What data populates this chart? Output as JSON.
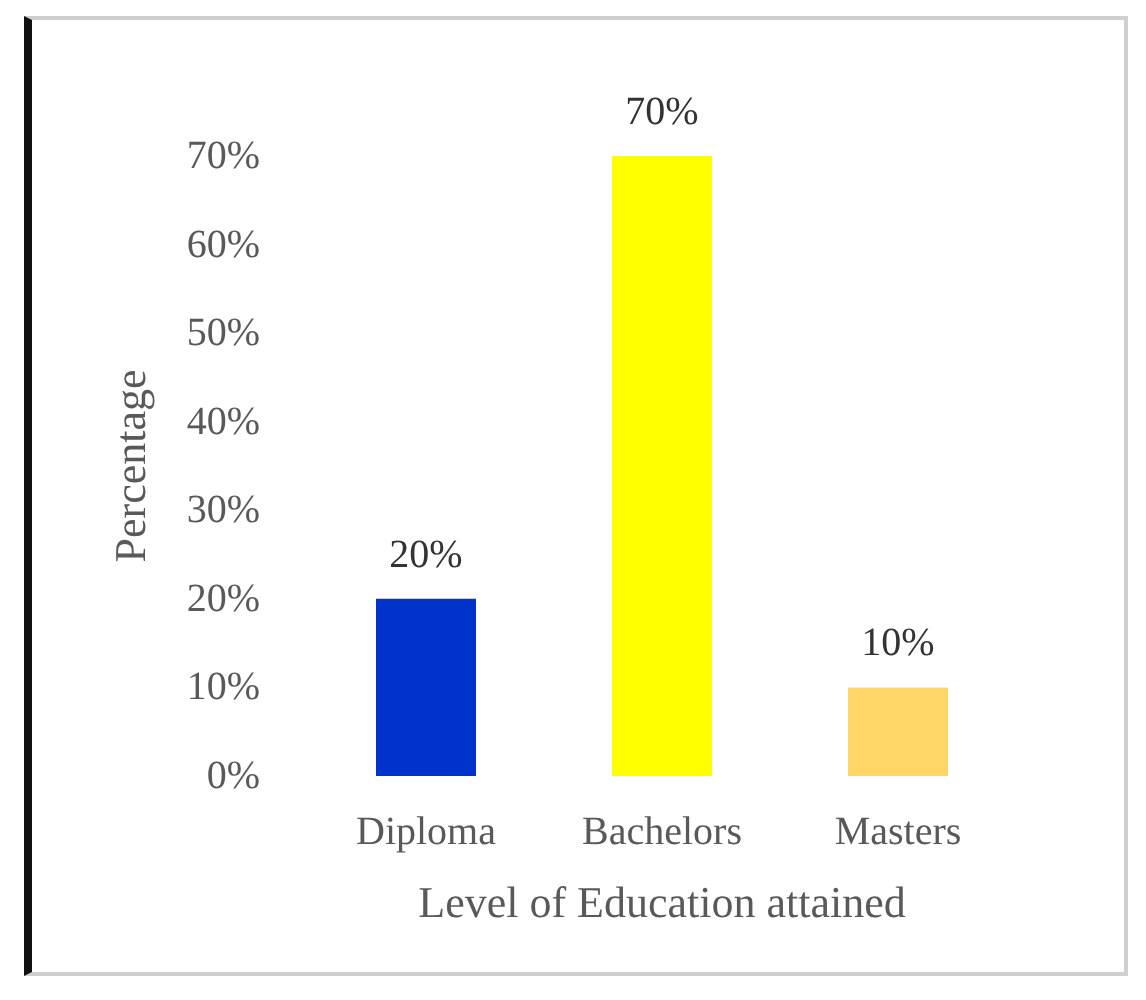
{
  "chart_data": {
    "type": "bar",
    "categories": [
      "Diploma",
      "Bachelors",
      "Masters"
    ],
    "values": [
      20,
      70,
      10
    ],
    "colors": [
      "#0033cc",
      "#ffff00",
      "#fed766"
    ],
    "value_labels": [
      "20%",
      "70%",
      "10%"
    ],
    "xlabel": "Level of Education attained",
    "ylabel": "Percentage",
    "ylim": [
      0,
      70
    ],
    "yticks": [
      {
        "value": 0,
        "label": "0%"
      },
      {
        "value": 10,
        "label": "10%"
      },
      {
        "value": 20,
        "label": "20%"
      },
      {
        "value": 30,
        "label": "30%"
      },
      {
        "value": 40,
        "label": "40%"
      },
      {
        "value": 50,
        "label": "50%"
      },
      {
        "value": 60,
        "label": "60%"
      },
      {
        "value": 70,
        "label": "70%"
      }
    ],
    "grid": false
  }
}
